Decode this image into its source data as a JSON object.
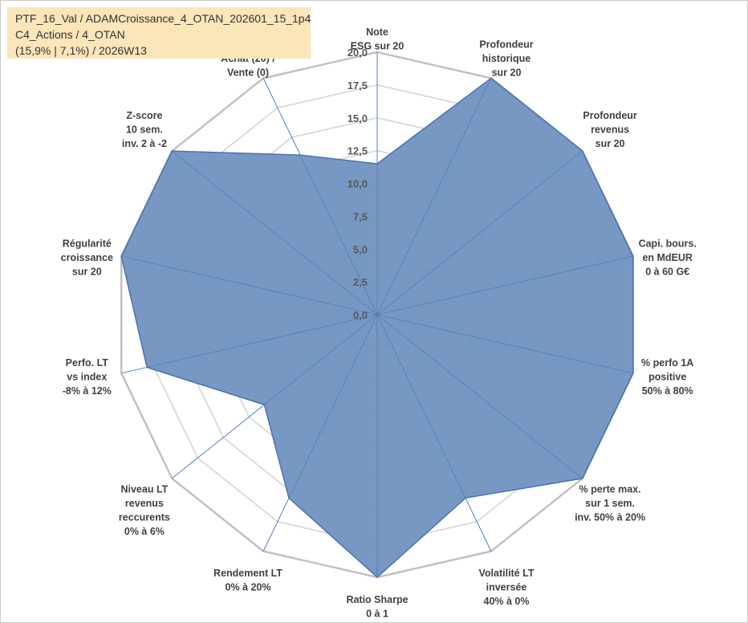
{
  "info_box": {
    "line1": "PTF_16_Val / ADAMCroissance_4_OTAN_202601_15_1p4",
    "line2": "C4_Actions / 4_OTAN",
    "line3": "(15,9% | 7,1%) / 2026W13"
  },
  "chart_data": {
    "type": "radar",
    "title": "",
    "rlim": [
      0,
      20
    ],
    "tick_values": [
      0,
      2.5,
      5,
      7.5,
      10,
      12.5,
      15,
      17.5,
      20
    ],
    "tick_labels": [
      "0,0",
      "2,5",
      "5,0",
      "7,5",
      "10,0",
      "12,5",
      "15,0",
      "17,5",
      "20,0"
    ],
    "grid": true,
    "legend": "none",
    "colors": {
      "fill": "#6f92bf",
      "stroke": "#4a72b0",
      "grid": "#d9d9d9",
      "outer_ring": "#bfbfbf",
      "spoke": "#4f7fc7",
      "info_bg": "#fbe5b9"
    },
    "axes": [
      {
        "lines": [
          "Note",
          "ESG sur 20"
        ],
        "value": 11.5
      },
      {
        "lines": [
          "Profondeur",
          "historique",
          "sur 20"
        ],
        "value": 20
      },
      {
        "lines": [
          "Profondeur",
          "revenus",
          "sur 20"
        ],
        "value": 20
      },
      {
        "lines": [
          "Capi. bours.",
          "en MdEUR",
          "0 à 60 G€"
        ],
        "value": 20
      },
      {
        "lines": [
          "% perfo 1A",
          "positive",
          "50% à 80%"
        ],
        "value": 20
      },
      {
        "lines": [
          "% perte max.",
          "sur 1 sem.",
          "inv. 50% à 20%"
        ],
        "value": 20
      },
      {
        "lines": [
          "Volatilité LT",
          "inversée",
          "40% à 0%"
        ],
        "value": 15.5
      },
      {
        "lines": [
          "Ratio Sharpe",
          "0 à 1"
        ],
        "value": 20
      },
      {
        "lines": [
          "Rendement LT",
          "0% à 20%"
        ],
        "value": 15.5
      },
      {
        "lines": [
          "Niveau LT",
          "revenus",
          "reccurents",
          "0% à 6%"
        ],
        "value": 11
      },
      {
        "lines": [
          "Perfo. LT",
          "vs index",
          "-8% à 12%"
        ],
        "value": 18
      },
      {
        "lines": [
          "Régularité",
          "croissance",
          "sur 20"
        ],
        "value": 20
      },
      {
        "lines": [
          "Z-score",
          "10 sem.",
          "inv. 2 à -2"
        ],
        "value": 20
      },
      {
        "lines": [
          "Momentum",
          "Achat (20) /",
          "Vente (0)"
        ],
        "value": 13.5,
        "first_line_muted": true
      }
    ]
  }
}
